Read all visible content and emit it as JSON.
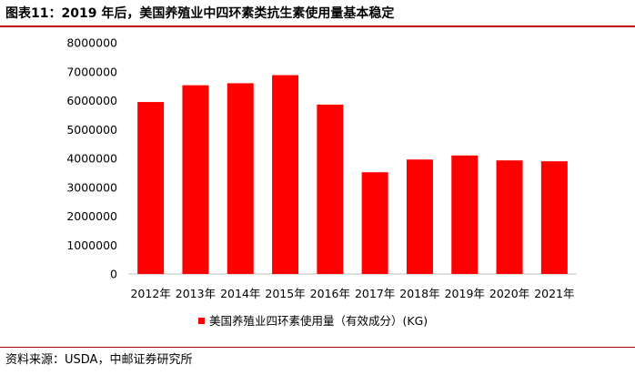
{
  "figure": {
    "title": "图表11：2019 年后，美国养殖业中四环素类抗生素使用量基本稳定",
    "source": "资料来源：USDA，中邮证券研究所"
  },
  "colors": {
    "bar": "#ff0000",
    "accent_rule": "#c00000",
    "axis": "#bfbfbf",
    "text": "#000000"
  },
  "chart_data": {
    "type": "bar",
    "categories": [
      "2012年",
      "2013年",
      "2014年",
      "2015年",
      "2016年",
      "2017年",
      "2018年",
      "2019年",
      "2020年",
      "2021年"
    ],
    "series": [
      {
        "name": "美国养殖业四环素使用量（有效成分）(KG)",
        "values": [
          5950000,
          6530000,
          6600000,
          6880000,
          5860000,
          3520000,
          3960000,
          4100000,
          3930000,
          3900000
        ]
      }
    ],
    "yticks": [
      0,
      1000000,
      2000000,
      3000000,
      4000000,
      5000000,
      6000000,
      7000000,
      8000000
    ],
    "ylim": [
      0,
      8000000
    ],
    "grid": false,
    "legend_position": "bottom"
  }
}
